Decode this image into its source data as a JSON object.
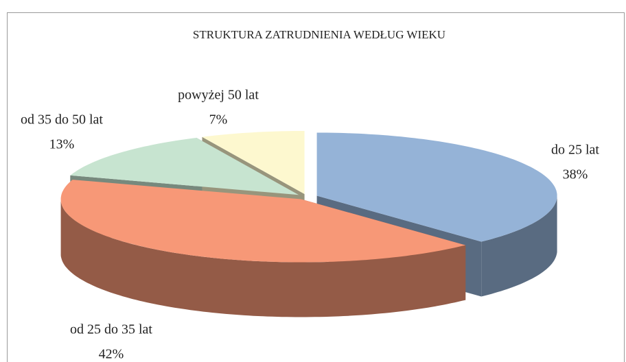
{
  "chart_data": {
    "type": "pie",
    "title": "STRUKTURA ZATRUDNIENIA WEDŁUG WIEKU",
    "categories": [
      "do 25 lat",
      "od 25 do 35 lat",
      "od 35 do 50 lat",
      "powyżej 50 lat"
    ],
    "values": [
      38,
      42,
      13,
      7
    ],
    "value_labels": [
      "38%",
      "42%",
      "13%",
      "7%"
    ],
    "colors": [
      "#95b3d7",
      "#f79877",
      "#c7e4d0",
      "#fdf8cf"
    ]
  }
}
